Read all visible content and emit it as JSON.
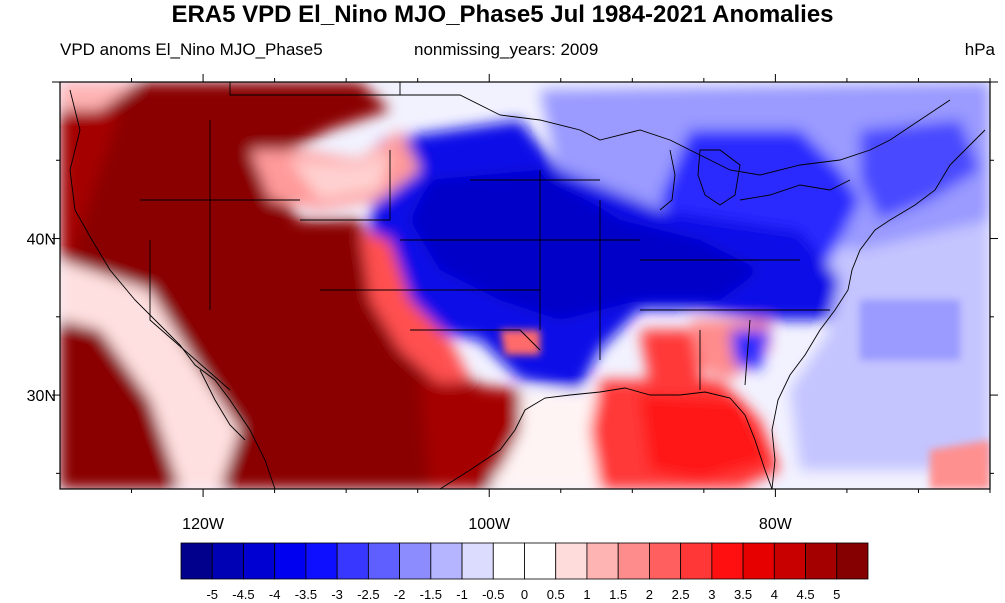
{
  "title": "ERA5 VPD El_Nino MJO_Phase5 Jul 1984-2021 Anomalies",
  "subtitle_left": "VPD anoms El_Nino MJO_Phase5",
  "subtitle_center": "nonmissing_years: 2009",
  "units": "hPa",
  "map": {
    "projection": "cylindrical equidistant",
    "region": "Contiguous United States",
    "lon_range": [
      -130,
      -65
    ],
    "lat_range": [
      24,
      50
    ],
    "lat_ticks": [
      {
        "value": 40,
        "label": "40N"
      },
      {
        "value": 30,
        "label": "30N"
      }
    ],
    "lon_ticks": [
      {
        "value": -120,
        "label": "120W"
      },
      {
        "value": -100,
        "label": "100W"
      },
      {
        "value": -80,
        "label": "80W"
      }
    ]
  },
  "colorbar": {
    "labels": [
      "-5",
      "-4.5",
      "-4",
      "-3.5",
      "-3",
      "-2.5",
      "-2",
      "-1.5",
      "-1",
      "-0.5",
      "0",
      "0.5",
      "1",
      "1.5",
      "2",
      "2.5",
      "3",
      "3.5",
      "4",
      "4.5",
      "5"
    ],
    "colors": [
      "#00008c",
      "#0000b4",
      "#0000d2",
      "#0000f0",
      "#0f0fff",
      "#3737ff",
      "#5f5fff",
      "#8c8cff",
      "#b4b4ff",
      "#dcdcff",
      "#ffffff",
      "#ffffff",
      "#ffdcdc",
      "#ffb4b4",
      "#ff8c8c",
      "#ff5f5f",
      "#ff3737",
      "#ff0f0f",
      "#e60000",
      "#c80000",
      "#a50000",
      "#850000"
    ]
  }
}
